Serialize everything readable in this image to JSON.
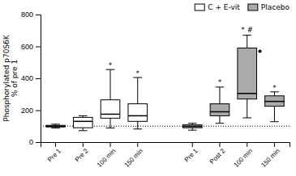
{
  "chart_data": {
    "type": "box",
    "ylabel": "Phosphorylated p70S6K\n% of pre 1",
    "ylim": [
      0,
      800
    ],
    "yticks": [
      0,
      200,
      400,
      600,
      800
    ],
    "reference_line": 100,
    "legend": "upper right",
    "series": [
      {
        "name": "C + E-vit",
        "color": "#ffffff",
        "categories": [
          "Pre 1",
          "Pre 2",
          "100 min",
          "150 min"
        ],
        "q1": [
          95,
          90,
          150,
          130
        ],
        "median": [
          100,
          130,
          175,
          165
        ],
        "q3": [
          105,
          155,
          265,
          240
        ],
        "whisker_low": [
          88,
          72,
          88,
          82
        ],
        "whisker_high": [
          112,
          165,
          455,
          405
        ],
        "fliers": [
          [],
          [],
          [],
          []
        ],
        "annotations": [
          {
            "category": "100 min",
            "y": 468,
            "text": "*"
          },
          {
            "category": "150 min",
            "y": 415,
            "text": "*"
          }
        ]
      },
      {
        "name": "Placebo",
        "color": "#aaaaaa",
        "categories": [
          "Pre 1",
          "Post 2",
          "100 min",
          "150 min"
        ],
        "q1": [
          90,
          165,
          270,
          225
        ],
        "median": [
          99,
          190,
          305,
          255
        ],
        "q3": [
          108,
          240,
          590,
          290
        ],
        "whisker_low": [
          75,
          118,
          152,
          128
        ],
        "whisker_high": [
          118,
          345,
          670,
          315
        ],
        "fliers": [
          [],
          [],
          [
            570
          ],
          []
        ],
        "annotations": [
          {
            "category": "Post 2",
            "y": 358,
            "text": "*"
          },
          {
            "category": "100 min",
            "y": 688,
            "text": "* #"
          },
          {
            "category": "150 min",
            "y": 325,
            "text": "*"
          }
        ]
      }
    ]
  }
}
